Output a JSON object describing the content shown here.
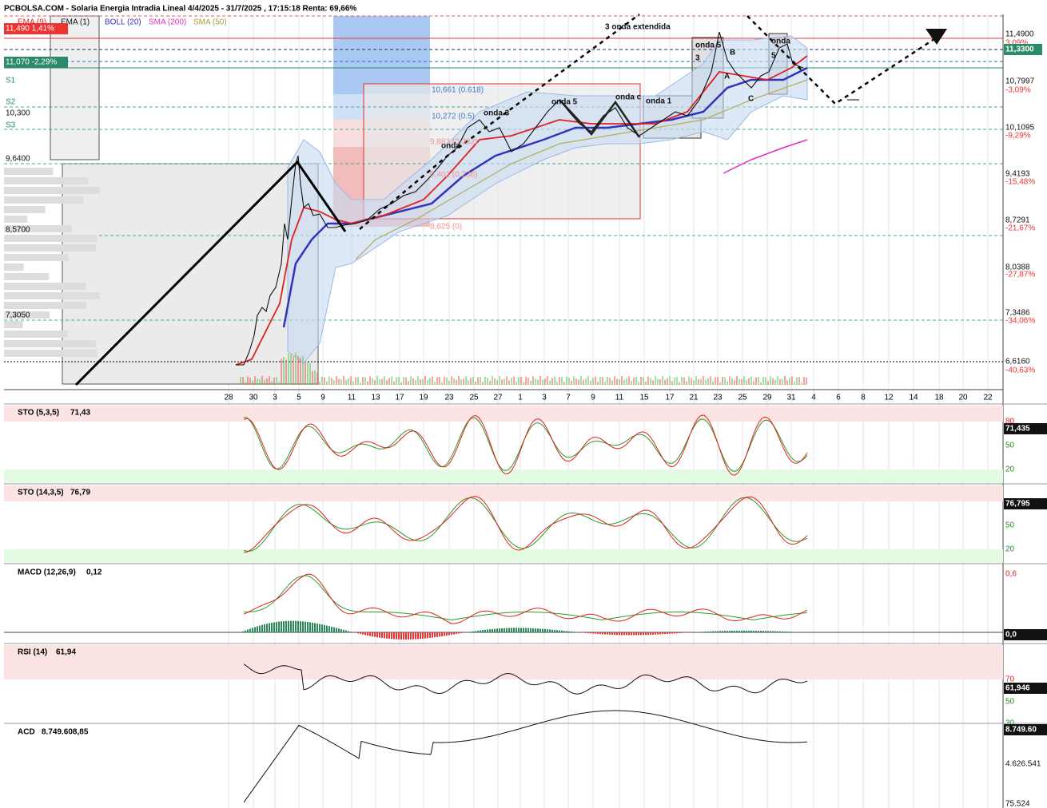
{
  "header": {
    "title": "PCBOLSA.COM - Solaria Energia Intradia Lineal 4/4/2025 - 31/7/2025 , 17:15:18 Renta: 69,66%",
    "legend": [
      "EMA (9)",
      "EMA (1)",
      "BOLL (20)",
      "SMA (200)",
      "SMA (50)"
    ]
  },
  "price_panel": {
    "left_labels": [
      "11,490  1,41%",
      "11,070  -2,29%",
      "S1",
      "S2",
      "S3",
      "10,300",
      "9,6400",
      "8,5700",
      "7,3050"
    ],
    "right_labels": [
      "11,4900",
      "3,09%",
      "11,3300",
      "10,7997",
      "-3,09%",
      "10,1095",
      "-9,29%",
      "9,4193",
      "-15,48%",
      "8,7291",
      "-21,67%",
      "8,0388",
      "-27,87%",
      "7,3486",
      "-34,06%",
      "6,6160",
      "-40,63%"
    ],
    "annotations": [
      "3 onda extendida",
      "onda 5",
      "3",
      "onda",
      "5",
      "B",
      "A",
      "C",
      "onda 1",
      "onda c",
      "onda 5",
      "onda 3",
      "onda",
      "10,661 (0.618)",
      "10,272 (0.5)",
      "9,883 (0.382)",
      "9,402 (0.236)",
      "8,625 (0)"
    ]
  },
  "x_axis": {
    "labels": [
      "28",
      "30",
      "3",
      "5",
      "9",
      "11",
      "13",
      "17",
      "19",
      "23",
      "25",
      "27",
      "1",
      "3",
      "7",
      "9",
      "11",
      "15",
      "17",
      "21",
      "23",
      "25",
      "29",
      "31",
      "4",
      "6",
      "8",
      "12",
      "14",
      "18",
      "20",
      "22"
    ]
  },
  "panels": [
    {
      "title": "STO (5,3,5)",
      "value": "71,43",
      "axis_labels": [
        "80",
        "50",
        "20"
      ],
      "last_label": "71,435"
    },
    {
      "title": "STO (14,3,5)",
      "value": "76,79",
      "axis_labels": [
        "50",
        "20"
      ],
      "last_label": "76,795"
    },
    {
      "title": "MACD (12,26,9)",
      "value": "0,12",
      "axis_labels": [
        "0,6",
        "0"
      ],
      "last_label": "0,0"
    },
    {
      "title": "RSI (14)",
      "value": "61,94",
      "axis_labels": [
        "70",
        "50",
        "30"
      ],
      "last_label": "61,946"
    },
    {
      "title": "ACD",
      "value": "8.749.608,85",
      "axis_labels": [
        "4.626.541",
        "75.524"
      ],
      "last_label": "8.749.60"
    }
  ]
}
